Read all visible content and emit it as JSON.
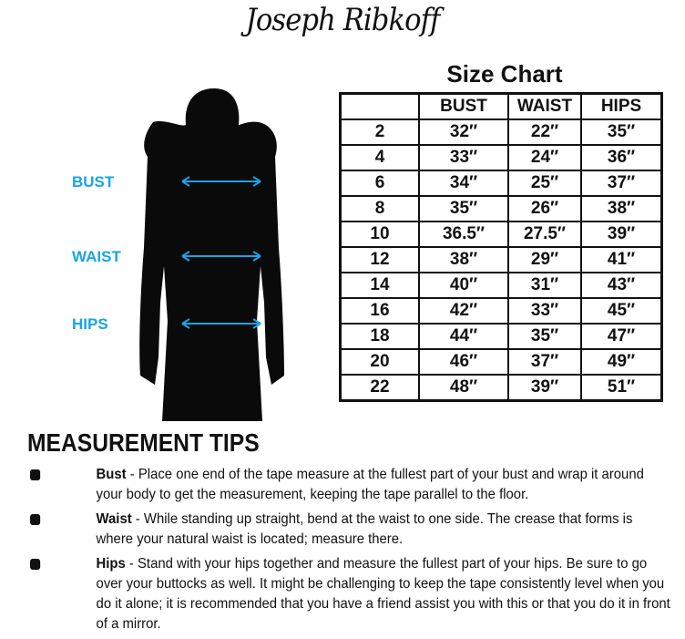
{
  "brand": {
    "logo_text": "Joseph Ribkoff"
  },
  "size_chart": {
    "title": "Size Chart",
    "headers": [
      "",
      "BUST",
      "WAIST",
      "HIPS"
    ],
    "rows": [
      [
        "2",
        "32″",
        "22″",
        "35″"
      ],
      [
        "4",
        "33″",
        "24″",
        "36″"
      ],
      [
        "6",
        "34″",
        "25″",
        "37″"
      ],
      [
        "8",
        "35″",
        "26″",
        "38″"
      ],
      [
        "10",
        "36.5″",
        "27.5″",
        "39″"
      ],
      [
        "12",
        "38″",
        "29″",
        "41″"
      ],
      [
        "14",
        "40″",
        "31″",
        "43″"
      ],
      [
        "16",
        "42″",
        "33″",
        "45″"
      ],
      [
        "18",
        "44″",
        "35″",
        "47″"
      ],
      [
        "20",
        "46″",
        "37″",
        "49″"
      ],
      [
        "22",
        "48″",
        "39″",
        "51″"
      ]
    ]
  },
  "figure": {
    "labels": [
      "BUST",
      "WAIST",
      "HIPS"
    ],
    "accent_color": "#1aa3e8"
  },
  "tips": {
    "title": "MEASUREMENT TIPS",
    "items": [
      {
        "term": "Bust",
        "text": " - Place one end of the tape measure at the fullest part of your bust and wrap it around your body to get the measurement, keeping the tape parallel to the floor."
      },
      {
        "term": "Waist",
        "text": " - While standing up straight, bend at the waist to one side. The crease that forms is where your natural waist is located; measure there."
      },
      {
        "term": "Hips",
        "text": " - Stand with your hips together and measure the fullest part of your hips. Be sure to go over your buttocks as well. It might be challenging to keep the tape consistently level when you do it alone; it is recommended that you have a friend assist you with this or that you do it in front of a mirror."
      }
    ]
  }
}
